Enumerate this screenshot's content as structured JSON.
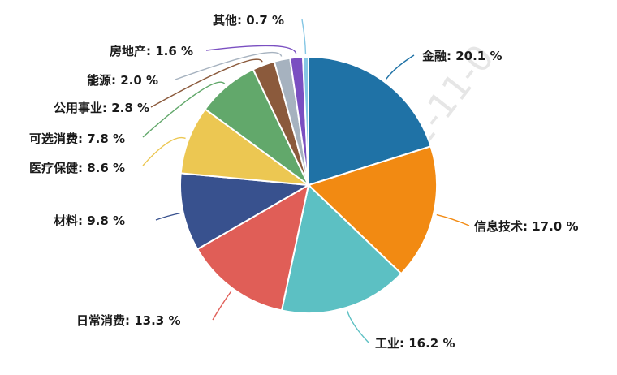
{
  "chart_data": {
    "type": "pie",
    "slices": [
      {
        "label": "金融",
        "value": 20.1,
        "text": "20.1 %",
        "color": "#1f72a6",
        "side": "right"
      },
      {
        "label": "信息技术",
        "value": 17.0,
        "text": "17.0 %",
        "color": "#f28a12",
        "side": "right"
      },
      {
        "label": "工业",
        "value": 16.2,
        "text": "16.2 %",
        "color": "#5cc0c3",
        "side": "right"
      },
      {
        "label": "日常消费",
        "value": 13.3,
        "text": "13.3 %",
        "color": "#e05e57",
        "side": "left"
      },
      {
        "label": "材料",
        "value": 9.8,
        "text": "9.8 %",
        "color": "#38518e",
        "side": "left"
      },
      {
        "label": "医疗保健",
        "value": 8.6,
        "text": "8.6 %",
        "color": "#ecc752",
        "side": "left"
      },
      {
        "label": "可选消费",
        "value": 7.8,
        "text": "7.8 %",
        "color": "#62a86b",
        "side": "left"
      },
      {
        "label": "公用事业",
        "value": 2.8,
        "text": "2.8 %",
        "color": "#8b5a3c",
        "side": "left"
      },
      {
        "label": "能源",
        "value": 2.0,
        "text": "2.0 %",
        "color": "#a6b2bf",
        "side": "left"
      },
      {
        "label": "房地产",
        "value": 1.6,
        "text": "1.6 %",
        "color": "#7a4fc1",
        "side": "left"
      },
      {
        "label": "其他",
        "value": 0.7,
        "text": "0.7 %",
        "color": "#84c6e4",
        "side": "left"
      }
    ],
    "legend": "none",
    "labels": "outside with leader lines"
  },
  "watermark": "2022-11-0"
}
